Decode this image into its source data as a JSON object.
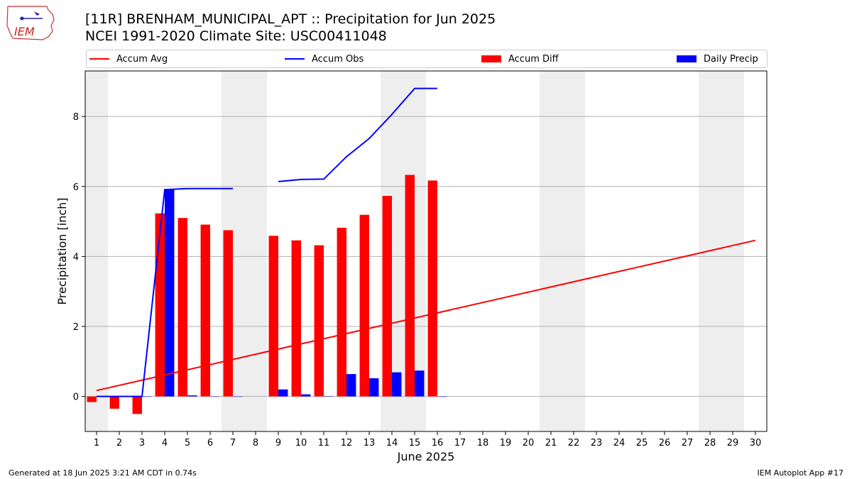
{
  "header": {
    "title": "[11R] BRENHAM_MUNICIPAL_APT :: Precipitation for Jun 2025",
    "subtitle": "NCEI 1991-2020 Climate Site: USC00411048",
    "logo_text": "IEM"
  },
  "footer": {
    "left": "Generated at 18 Jun 2025 3:21 AM CDT in 0.74s",
    "right": "IEM Autoplot App #17"
  },
  "colors": {
    "accum_avg": "#ff0000",
    "accum_obs": "#0000ff",
    "accum_diff": "#ff0000",
    "daily_precip": "#0000ff",
    "weekend_shade": "#eeeeee",
    "grid": "#b0b0b0"
  },
  "chart_data": {
    "type": "bar",
    "title": "[11R] BRENHAM_MUNICIPAL_APT :: Precipitation for Jun 2025",
    "subtitle": "NCEI 1991-2020 Climate Site: USC00411048",
    "xlabel": "June 2025",
    "ylabel": "Precipitation [inch]",
    "xlim": [
      0.5,
      30.5
    ],
    "ylim": [
      -1.0,
      9.3
    ],
    "yticks": [
      0,
      2,
      4,
      6,
      8
    ],
    "xticks": [
      1,
      2,
      3,
      4,
      5,
      6,
      7,
      8,
      9,
      10,
      11,
      12,
      13,
      14,
      15,
      16,
      17,
      18,
      19,
      20,
      21,
      22,
      23,
      24,
      25,
      26,
      27,
      28,
      29,
      30
    ],
    "grid": "horizontal",
    "legend_placement": "top, above plot",
    "shaded_weekend_days": [
      [
        1,
        1
      ],
      [
        7,
        8
      ],
      [
        14,
        15
      ],
      [
        21,
        22
      ],
      [
        28,
        29
      ]
    ],
    "legend": [
      {
        "label": "Accum Avg",
        "kind": "line",
        "color_key": "accum_avg"
      },
      {
        "label": "Accum Obs",
        "kind": "line",
        "color_key": "accum_obs"
      },
      {
        "label": "Accum Diff",
        "kind": "bar",
        "color_key": "accum_diff"
      },
      {
        "label": "Daily Precip",
        "kind": "bar",
        "color_key": "daily_precip"
      }
    ],
    "series": [
      {
        "name": "Accum Avg",
        "kind": "line",
        "x": [
          1,
          30
        ],
        "values": [
          0.17,
          4.46
        ]
      },
      {
        "name": "Accum Obs",
        "kind": "line",
        "segments": [
          {
            "x": [
              1,
              2,
              3,
              4,
              5,
              6,
              7
            ],
            "values": [
              0.0,
              0.0,
              0.0,
              5.91,
              5.94,
              5.94,
              5.94
            ]
          },
          {
            "x": [
              9,
              10,
              11,
              12,
              13,
              14,
              15,
              16
            ],
            "values": [
              6.14,
              6.2,
              6.21,
              6.85,
              7.37,
              8.06,
              8.8,
              8.8
            ]
          }
        ]
      },
      {
        "name": "Accum Diff",
        "kind": "bar",
        "x": [
          1,
          2,
          3,
          4,
          5,
          6,
          7,
          9,
          10,
          11,
          12,
          13,
          14,
          15,
          16
        ],
        "values": [
          -0.16,
          -0.35,
          -0.5,
          5.23,
          5.1,
          4.91,
          4.75,
          4.59,
          4.46,
          4.32,
          4.82,
          5.19,
          5.73,
          6.33,
          6.17
        ]
      },
      {
        "name": "Daily Precip",
        "kind": "bar",
        "x": [
          1,
          2,
          3,
          4,
          5,
          6,
          7,
          9,
          10,
          11,
          12,
          13,
          14,
          15,
          16
        ],
        "values": [
          0.0,
          0.0,
          0.0,
          5.91,
          0.03,
          0.0,
          0.0,
          0.2,
          0.06,
          0.01,
          0.64,
          0.52,
          0.69,
          0.74,
          0.0
        ]
      }
    ]
  }
}
